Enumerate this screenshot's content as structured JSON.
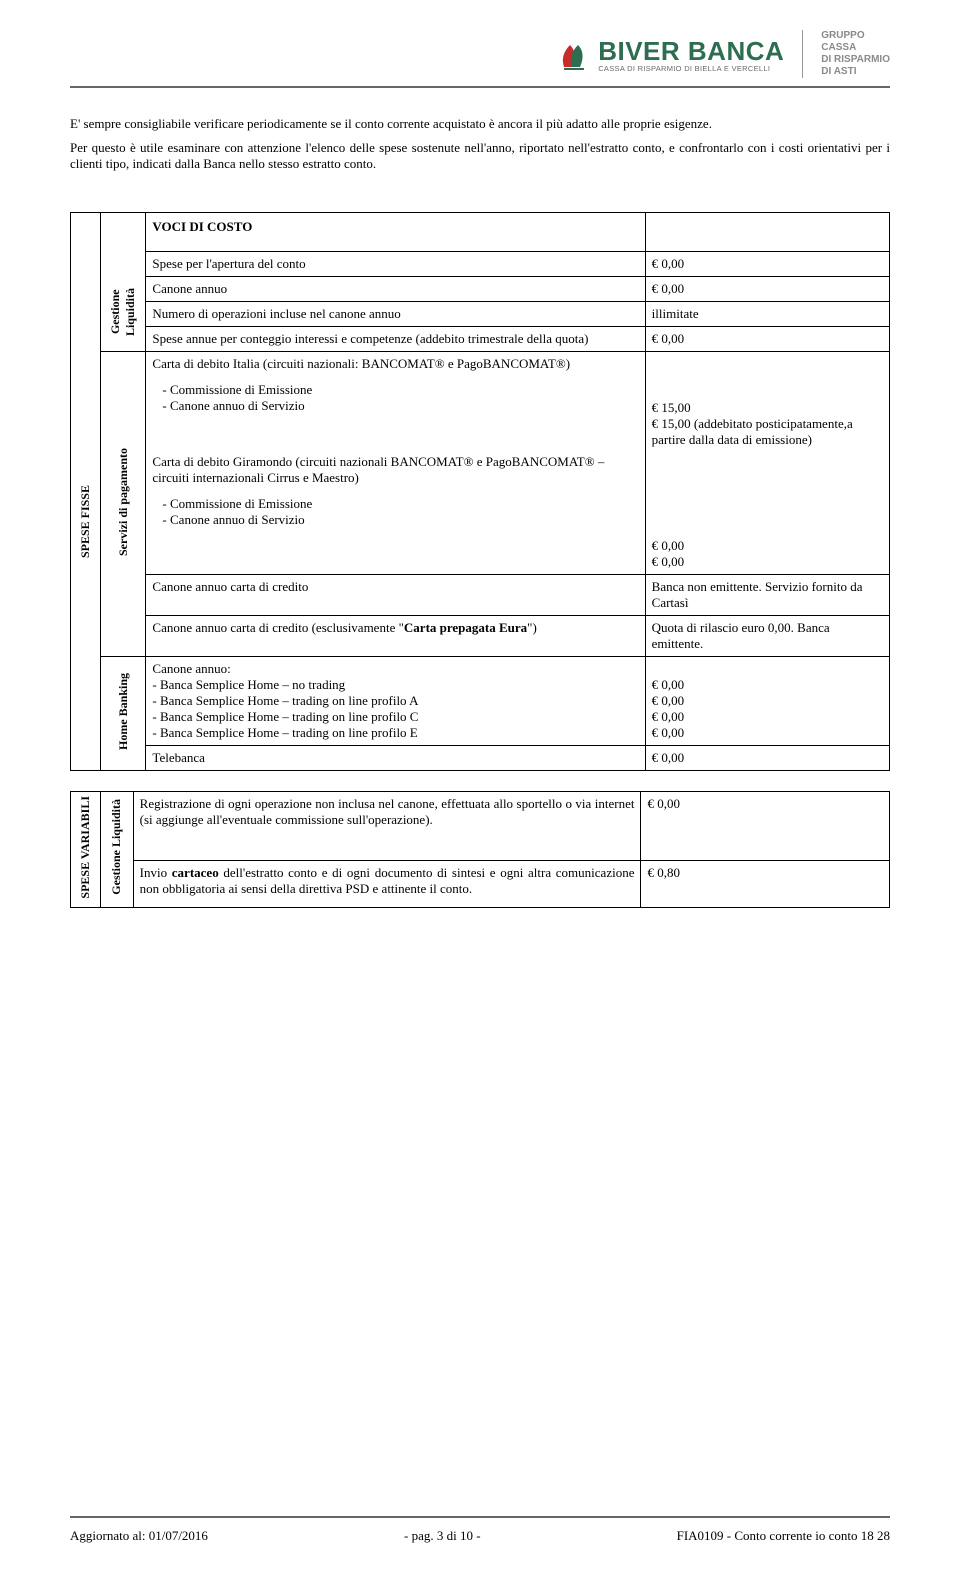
{
  "header": {
    "logo_name": "BIVER BANCA",
    "logo_sub": "CASSA DI RISPARMIO DI BIELLA E VERCELLI",
    "gruppo_l1": "GRUPPO",
    "gruppo_l2": "CASSA",
    "gruppo_l3": "DI RISPARMIO",
    "gruppo_l4": "DI ASTI",
    "logo_colors": {
      "green": "#2c6e4f",
      "red": "#c62c2c",
      "grey": "#8a8a8a"
    }
  },
  "intro": {
    "p1": "E' sempre consigliabile verificare periodicamente se il conto corrente acquistato è ancora il più adatto alle proprie esigenze.",
    "p2": "Per questo è utile esaminare con attenzione l'elenco delle spese sostenute nell'anno, riportato nell'estratto conto, e confrontarlo con i costi orientativi per i clienti tipo, indicati dalla Banca nello stesso estratto conto."
  },
  "table": {
    "voci_header": "VOCI DI COSTO",
    "spese_fisse_label": "SPESE FISSE",
    "spese_variabili_label": "SPESE VARIABILI",
    "gestione_liquidita_label": "Gestione\nLiquidità",
    "servizi_pagamento_label": "Servizi di pagamento",
    "home_banking_label": "Home Banking",
    "gestione_liquidita2_label": "Gestione Liquidità",
    "r_apertura": {
      "desc": "Spese per l'apertura del conto",
      "val": "€ 0,00"
    },
    "r_canone": {
      "desc": "Canone annuo",
      "val": "€ 0,00"
    },
    "r_numop": {
      "desc": "Numero di operazioni incluse nel canone annuo",
      "val": "illimitate"
    },
    "r_spese_annue": {
      "desc": "Spese annue per conteggio interessi e competenze (addebito trimestrale della quota)",
      "val": "€ 0,00"
    },
    "carta_italia_head": "Carta di debito Italia (circuiti nazionali: BANCOMAT® e PagoBANCOMAT®)",
    "emissione": "Commissione di Emissione",
    "canone_servizio": "Canone annuo di Servizio",
    "carta_italia_val1": "€ 15,00",
    "carta_italia_val2": "€ 15,00 (addebitato posticipatamente,a partire dalla data di emissione)",
    "carta_giramondo_head": "Carta di debito Giramondo (circuiti nazionali BANCOMAT® e PagoBANCOMAT® – circuiti internazionali Cirrus e Maestro)",
    "giramondo_val1": "€ 0,00",
    "giramondo_val2": "€ 0,00",
    "canone_cc": {
      "desc": "Canone annuo carta di credito",
      "val": "Banca non emittente. Servizio fornito da Cartasì"
    },
    "eura": {
      "desc": "Canone annuo carta di credito (esclusivamente \"Carta prepagata Eura\")",
      "val": "Quota di rilascio euro 0,00. Banca emittente."
    },
    "hb_head": "Canone annuo:",
    "hb1": "- Banca Semplice Home – no trading",
    "hb2": "- Banca Semplice Home – trading on line profilo A",
    "hb3": "- Banca Semplice Home – trading on line profilo C",
    "hb4": "- Banca Semplice Home – trading on line profilo E",
    "hb_v1": "€ 0,00",
    "hb_v2": "€ 0,00",
    "hb_v3": "€ 0,00",
    "hb_v4": "€ 0,00",
    "telebanca": {
      "desc": "Telebanca",
      "val": "€ 0,00"
    },
    "reg_op": {
      "desc": "Registrazione di ogni operazione non inclusa nel canone, effettuata allo sportello o via internet (si aggiunge all'eventuale commissione sull'operazione).",
      "val": "€ 0,00"
    },
    "cartaceo": {
      "desc_pre": "Invio ",
      "desc_bold": "cartaceo",
      "desc_post": " dell'estratto conto e di ogni documento di sintesi e ogni altra comunicazione non obbligatoria ai sensi della direttiva PSD e attinente il conto.",
      "val": "€ 0,80"
    }
  },
  "footer": {
    "left": "Aggiornato al: 01/07/2016",
    "center": "- pag. 3 di 10 -",
    "right": "FIA0109 - Conto corrente io conto 18 28"
  }
}
